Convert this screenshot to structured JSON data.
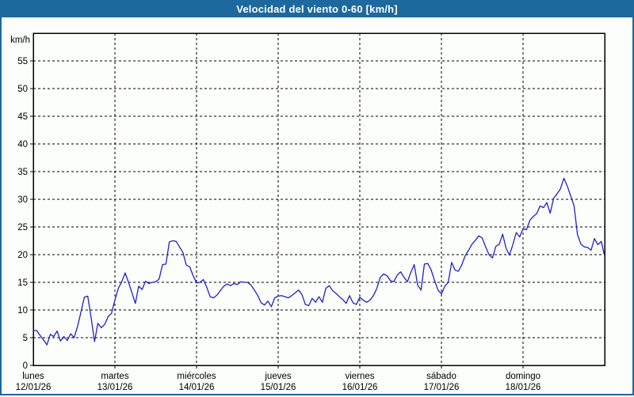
{
  "window": {
    "title": "Velocidad del viento 0-60 [km/h]"
  },
  "chart_data": {
    "type": "line",
    "title": "Velocidad del viento 0-60 [km/h]",
    "xlabel": "",
    "ylabel": "km/h",
    "ylim": [
      0,
      60
    ],
    "ytick_step": 5,
    "ytick_labels": [
      "0",
      "5",
      "10",
      "15",
      "20",
      "25",
      "30",
      "35",
      "40",
      "45",
      "50",
      "55"
    ],
    "xlim_hours": [
      0,
      168
    ],
    "grid": true,
    "legend": "none",
    "line_color": "#2121c4",
    "days": [
      {
        "name": "lunes",
        "date": "12/01/26"
      },
      {
        "name": "martes",
        "date": "13/01/26"
      },
      {
        "name": "miércoles",
        "date": "14/01/26"
      },
      {
        "name": "jueves",
        "date": "15/01/26"
      },
      {
        "name": "viernes",
        "date": "16/01/26"
      },
      {
        "name": "sábado",
        "date": "17/01/26"
      },
      {
        "name": "domingo",
        "date": "18/01/26"
      }
    ],
    "points": [
      [
        0,
        6.3
      ],
      [
        1,
        6.3
      ],
      [
        2,
        5.4
      ],
      [
        3,
        4.6
      ],
      [
        4,
        3.7
      ],
      [
        5,
        5.6
      ],
      [
        6,
        5.2
      ],
      [
        7,
        6.2
      ],
      [
        8,
        4.4
      ],
      [
        9,
        5.2
      ],
      [
        10,
        4.5
      ],
      [
        11,
        5.7
      ],
      [
        12,
        5.0
      ],
      [
        13,
        7.0
      ],
      [
        14,
        9.6
      ],
      [
        15,
        12.3
      ],
      [
        16,
        12.5
      ],
      [
        17,
        8.6
      ],
      [
        18,
        4.3
      ],
      [
        19,
        7.6
      ],
      [
        20,
        6.8
      ],
      [
        21,
        7.4
      ],
      [
        22,
        8.8
      ],
      [
        23,
        9.4
      ],
      [
        24,
        11.8
      ],
      [
        25,
        13.9
      ],
      [
        26,
        15.1
      ],
      [
        27,
        16.7
      ],
      [
        28,
        15.0
      ],
      [
        29,
        13.1
      ],
      [
        30,
        11.2
      ],
      [
        31,
        14.3
      ],
      [
        32,
        13.7
      ],
      [
        33,
        15.2
      ],
      [
        34,
        14.8
      ],
      [
        35,
        15.0
      ],
      [
        36,
        15.1
      ],
      [
        37,
        15.6
      ],
      [
        38,
        18.2
      ],
      [
        39,
        18.3
      ],
      [
        40,
        22.3
      ],
      [
        41,
        22.5
      ],
      [
        42,
        22.4
      ],
      [
        43,
        21.4
      ],
      [
        44,
        20.4
      ],
      [
        45,
        18.1
      ],
      [
        46,
        17.8
      ],
      [
        47,
        16.2
      ],
      [
        48,
        14.9
      ],
      [
        49,
        15.0
      ],
      [
        50,
        15.5
      ],
      [
        51,
        14.1
      ],
      [
        52,
        12.4
      ],
      [
        53,
        12.2
      ],
      [
        54,
        12.7
      ],
      [
        55,
        13.5
      ],
      [
        56,
        14.3
      ],
      [
        57,
        14.7
      ],
      [
        58,
        14.4
      ],
      [
        59,
        14.8
      ],
      [
        60,
        14.6
      ],
      [
        61,
        15.1
      ],
      [
        62,
        15.0
      ],
      [
        63,
        15.0
      ],
      [
        64,
        14.5
      ],
      [
        65,
        13.6
      ],
      [
        66,
        12.6
      ],
      [
        67,
        11.3
      ],
      [
        68,
        10.9
      ],
      [
        69,
        11.6
      ],
      [
        70,
        10.6
      ],
      [
        71,
        12.2
      ],
      [
        72,
        12.5
      ],
      [
        73,
        12.6
      ],
      [
        74,
        12.4
      ],
      [
        75,
        12.2
      ],
      [
        76,
        12.6
      ],
      [
        77,
        13.1
      ],
      [
        78,
        13.6
      ],
      [
        79,
        12.8
      ],
      [
        80,
        11.0
      ],
      [
        81,
        10.8
      ],
      [
        82,
        12.1
      ],
      [
        83,
        11.4
      ],
      [
        84,
        12.4
      ],
      [
        85,
        11.4
      ],
      [
        86,
        13.9
      ],
      [
        87,
        14.4
      ],
      [
        88,
        13.5
      ],
      [
        89,
        13.0
      ],
      [
        90,
        12.4
      ],
      [
        91,
        11.9
      ],
      [
        92,
        11.2
      ],
      [
        93,
        12.6
      ],
      [
        94,
        11.3
      ],
      [
        95,
        11.0
      ],
      [
        96,
        12.3
      ],
      [
        97,
        11.8
      ],
      [
        98,
        11.4
      ],
      [
        99,
        11.8
      ],
      [
        100,
        12.6
      ],
      [
        101,
        13.9
      ],
      [
        102,
        15.9
      ],
      [
        103,
        16.5
      ],
      [
        104,
        16.2
      ],
      [
        105,
        15.3
      ],
      [
        106,
        15.1
      ],
      [
        107,
        16.3
      ],
      [
        108,
        16.9
      ],
      [
        109,
        15.9
      ],
      [
        110,
        15.1
      ],
      [
        111,
        16.8
      ],
      [
        112,
        18.2
      ],
      [
        113,
        14.5
      ],
      [
        114,
        13.6
      ],
      [
        115,
        18.3
      ],
      [
        116,
        18.4
      ],
      [
        117,
        17.2
      ],
      [
        118,
        15.3
      ],
      [
        119,
        13.6
      ],
      [
        120,
        12.9
      ],
      [
        121,
        14.3
      ],
      [
        122,
        15.0
      ],
      [
        123,
        18.6
      ],
      [
        124,
        17.2
      ],
      [
        125,
        17.0
      ],
      [
        126,
        18.2
      ],
      [
        127,
        19.8
      ],
      [
        128,
        20.8
      ],
      [
        129,
        21.9
      ],
      [
        130,
        22.6
      ],
      [
        131,
        23.4
      ],
      [
        132,
        23.0
      ],
      [
        133,
        21.4
      ],
      [
        134,
        20.0
      ],
      [
        135,
        19.4
      ],
      [
        136,
        21.5
      ],
      [
        137,
        21.9
      ],
      [
        138,
        23.7
      ],
      [
        139,
        21.2
      ],
      [
        140,
        19.9
      ],
      [
        141,
        21.8
      ],
      [
        142,
        24.0
      ],
      [
        143,
        23.2
      ],
      [
        144,
        24.7
      ],
      [
        145,
        24.5
      ],
      [
        146,
        26.2
      ],
      [
        147,
        26.9
      ],
      [
        148,
        27.4
      ],
      [
        149,
        28.8
      ],
      [
        150,
        28.5
      ],
      [
        151,
        29.4
      ],
      [
        152,
        27.5
      ],
      [
        153,
        30.2
      ],
      [
        154,
        31.0
      ],
      [
        155,
        31.9
      ],
      [
        156,
        33.8
      ],
      [
        157,
        32.4
      ],
      [
        158,
        30.6
      ],
      [
        159,
        28.8
      ],
      [
        160,
        23.6
      ],
      [
        161,
        21.9
      ],
      [
        162,
        21.4
      ],
      [
        163,
        21.3
      ],
      [
        164,
        20.8
      ],
      [
        165,
        22.9
      ],
      [
        166,
        21.8
      ],
      [
        167,
        22.4
      ],
      [
        168,
        19.7
      ]
    ]
  }
}
